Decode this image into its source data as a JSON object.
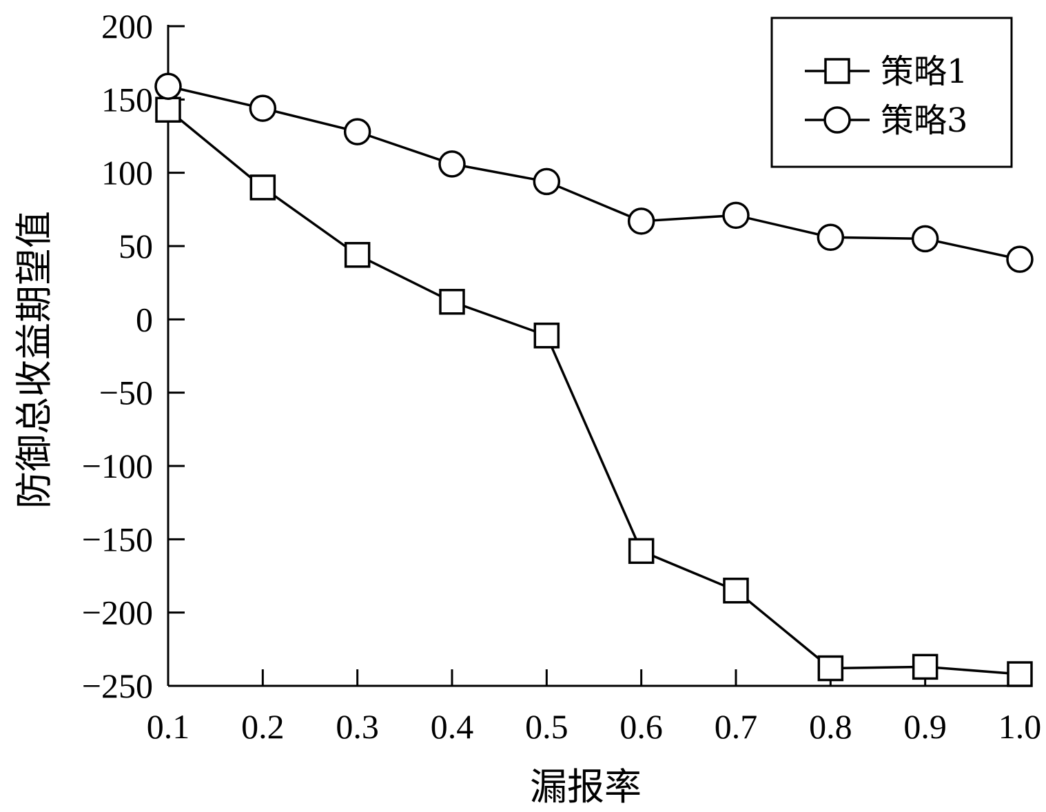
{
  "chart_data": {
    "type": "line",
    "title": "",
    "xlabel": "漏报率",
    "ylabel": "防御总收益期望值",
    "x": [
      0.1,
      0.2,
      0.3,
      0.4,
      0.5,
      0.6,
      0.7,
      0.8,
      0.9,
      1.0
    ],
    "x_tick_labels": [
      "0.1",
      "0.2",
      "0.3",
      "0.4",
      "0.5",
      "0.6",
      "0.7",
      "0.8",
      "0.9",
      "1.0"
    ],
    "y_ticks": [
      200,
      150,
      100,
      50,
      0,
      -50,
      -100,
      -150,
      -200,
      -250
    ],
    "y_tick_labels": [
      "200",
      "150",
      "100",
      "50",
      "0",
      "−50",
      "−100",
      "−150",
      "−200",
      "−250"
    ],
    "xlim": [
      0.1,
      1.0
    ],
    "ylim": [
      -250,
      200
    ],
    "grid": false,
    "legend_position": "top-right",
    "series": [
      {
        "name": "策略1",
        "marker": "square",
        "values": [
          143,
          90,
          44,
          12,
          -11,
          -158,
          -185,
          -238,
          -237,
          -242
        ]
      },
      {
        "name": "策略3",
        "marker": "circle",
        "values": [
          159,
          144,
          128,
          106,
          94,
          67,
          71,
          56,
          55,
          41
        ]
      }
    ]
  },
  "colors": {
    "line": "#000000",
    "marker_fill": "#ffffff",
    "background": "#ffffff"
  }
}
